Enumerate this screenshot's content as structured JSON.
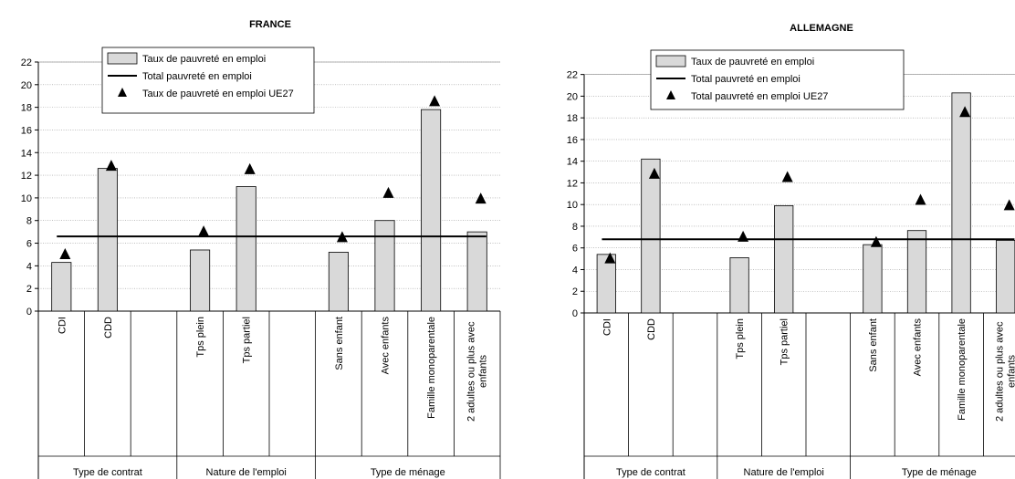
{
  "chart_data": [
    {
      "type": "bar",
      "title": "FRANCE",
      "categories": [
        "CDI",
        "CDD",
        "",
        "Tps plein",
        "Tps partiel",
        "",
        "Sans enfant",
        "Avec enfants",
        "Famille monoparentale",
        "2 adultes ou plus avec enfants"
      ],
      "groups": [
        "Type de contrat",
        "Nature de l'emploi",
        "Type de ménage"
      ],
      "series": [
        {
          "name": "Taux de pauvreté en emploi",
          "kind": "bar",
          "values": [
            4.3,
            12.6,
            null,
            5.4,
            11.0,
            null,
            5.2,
            8.0,
            17.8,
            7.0
          ]
        },
        {
          "name": "Total pauvreté en emploi",
          "kind": "line",
          "value": 6.6
        },
        {
          "name": "Taux de pauvreté en emploi UE27",
          "kind": "marker",
          "values": [
            5.0,
            12.8,
            null,
            7.0,
            12.5,
            null,
            6.5,
            10.4,
            18.5,
            9.9
          ]
        }
      ],
      "ylim": [
        0,
        22
      ],
      "yticks": [
        0,
        2,
        4,
        6,
        8,
        10,
        12,
        14,
        16,
        18,
        20,
        22
      ],
      "grid": true,
      "legend_position": "top"
    },
    {
      "type": "bar",
      "title": "ALLEMAGNE",
      "categories": [
        "CDI",
        "CDD",
        "",
        "Tps plein",
        "Tps partiel",
        "",
        "Sans enfant",
        "Avec enfants",
        "Famille monoparentale",
        "2 adultes ou plus avec enfants"
      ],
      "groups": [
        "Type de contrat",
        "Nature de l'emploi",
        "Type de ménage"
      ],
      "series": [
        {
          "name": "Taux de pauvreté en emploi",
          "kind": "bar",
          "values": [
            5.4,
            14.2,
            null,
            5.1,
            9.9,
            null,
            6.3,
            7.6,
            20.3,
            6.7
          ]
        },
        {
          "name": "Total pauvreté en emploi",
          "kind": "line",
          "value": 6.8
        },
        {
          "name": "Total pauvreté en emploi UE27",
          "kind": "marker",
          "values": [
            5.0,
            12.8,
            null,
            7.0,
            12.5,
            null,
            6.5,
            10.4,
            18.5,
            9.9
          ]
        }
      ],
      "ylim": [
        0,
        22
      ],
      "yticks": [
        0,
        2,
        4,
        6,
        8,
        10,
        12,
        14,
        16,
        18,
        20,
        22
      ],
      "grid": true,
      "legend_position": "top"
    }
  ]
}
